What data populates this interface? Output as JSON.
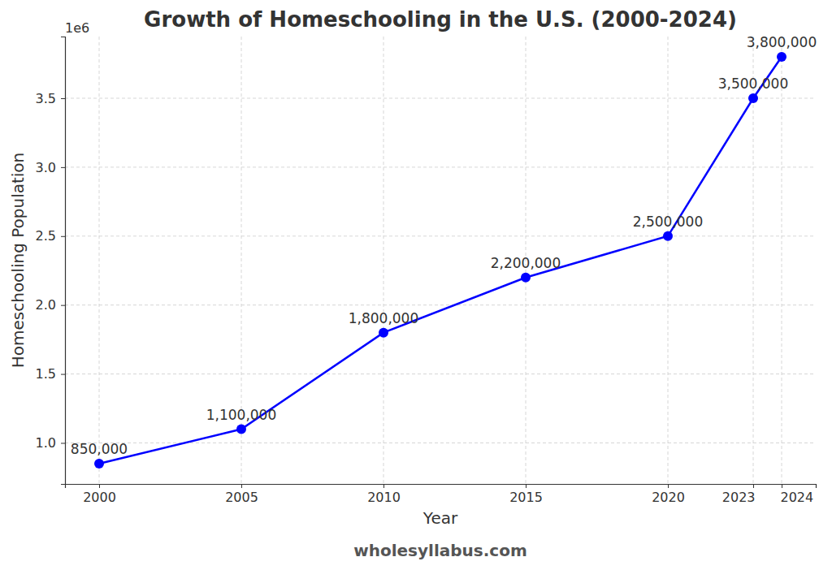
{
  "chart_data": {
    "type": "line",
    "title": "Growth of Homeschooling in the U.S. (2000-2024)",
    "x_label": "Year",
    "y_label": "Homeschooling Population",
    "y_multiplier": "1e6",
    "source": "wholesyllabus.com",
    "x": [
      2000,
      2005,
      2010,
      2015,
      2020,
      2023,
      2024
    ],
    "values": [
      850000,
      1100000,
      1800000,
      2200000,
      2500000,
      3500000,
      3800000
    ],
    "value_labels": [
      "850,000",
      "1,100,000",
      "1,800,000",
      "2,200,000",
      "2,500,000",
      "3,500,000",
      "3,800,000"
    ],
    "data_labels": true,
    "color": "#0000ff",
    "marker": "circle",
    "line_style": "solid",
    "xlim": [
      1998.8,
      2025.2
    ],
    "ylim": [
      702500,
      3947500
    ],
    "xticks": [
      2000,
      2005,
      2010,
      2015,
      2020,
      2023,
      2024
    ],
    "yticks": [
      {
        "value": 1000000,
        "label": "1.0"
      },
      {
        "value": 1500000,
        "label": "1.5"
      },
      {
        "value": 2000000,
        "label": "2.0"
      },
      {
        "value": 2500000,
        "label": "2.5"
      },
      {
        "value": 3000000,
        "label": "3.0"
      },
      {
        "value": 3500000,
        "label": "3.5"
      }
    ],
    "grid": true
  }
}
